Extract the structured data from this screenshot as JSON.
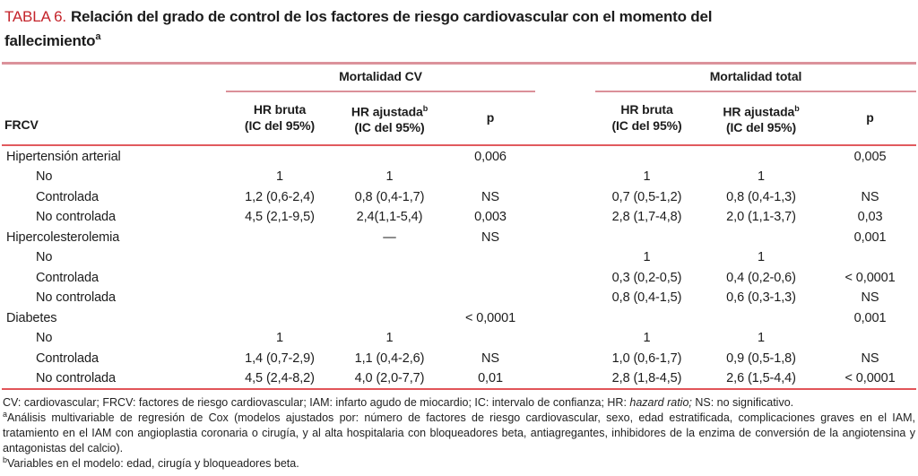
{
  "title": {
    "tag": "TABLA 6.",
    "text": "Relación del grado de control de los factores de riesgo cardiovascular con el momento del fallecimiento",
    "sup": "a"
  },
  "table": {
    "corner_label": "FRCV",
    "groups": [
      {
        "label": "Mortalidad CV"
      },
      {
        "label": "Mortalidad total"
      }
    ],
    "columns": {
      "hr_bruta_line1": "HR bruta",
      "hr_bruta_line2": "(IC del 95%)",
      "hr_ajustada_line1": "HR ajustada",
      "hr_ajustada_sup": "b",
      "hr_ajustada_line2": "(IC del 95%)",
      "p": "p"
    },
    "rows": [
      {
        "label": "Hipertensión arterial",
        "indent": false,
        "cells": [
          "",
          "",
          "0,006",
          "",
          "",
          "0,005"
        ]
      },
      {
        "label": "No",
        "indent": true,
        "cells": [
          "1",
          "1",
          "",
          "1",
          "1",
          ""
        ]
      },
      {
        "label": "Controlada",
        "indent": true,
        "cells": [
          "1,2 (0,6-2,4)",
          "0,8 (0,4-1,7)",
          "NS",
          "0,7 (0,5-1,2)",
          "0,8 (0,4-1,3)",
          "NS"
        ]
      },
      {
        "label": "No controlada",
        "indent": true,
        "cells": [
          "4,5 (2,1-9,5)",
          "2,4(1,1-5,4)",
          "0,003",
          "2,8 (1,7-4,8)",
          "2,0 (1,1-3,7)",
          "0,03"
        ]
      },
      {
        "label": "Hipercolesterolemia",
        "indent": false,
        "cells": [
          "",
          "—",
          "NS",
          "",
          "",
          "0,001"
        ]
      },
      {
        "label": "No",
        "indent": true,
        "cells": [
          "",
          "",
          "",
          "1",
          "1",
          ""
        ]
      },
      {
        "label": "Controlada",
        "indent": true,
        "cells": [
          "",
          "",
          "",
          "0,3 (0,2-0,5)",
          "0,4 (0,2-0,6)",
          "< 0,0001"
        ]
      },
      {
        "label": "No controlada",
        "indent": true,
        "cells": [
          "",
          "",
          "",
          "0,8 (0,4-1,5)",
          "0,6 (0,3-1,3)",
          "NS"
        ]
      },
      {
        "label": "Diabetes",
        "indent": false,
        "cells": [
          "",
          "",
          "< 0,0001",
          "",
          "",
          "0,001"
        ]
      },
      {
        "label": "No",
        "indent": true,
        "cells": [
          "1",
          "1",
          "",
          "1",
          "1",
          ""
        ]
      },
      {
        "label": "Controlada",
        "indent": true,
        "cells": [
          "1,4 (0,7-2,9)",
          "1,1 (0,4-2,6)",
          "NS",
          "1,0 (0,6-1,7)",
          "0,9 (0,5-1,8)",
          "NS"
        ]
      },
      {
        "label": "No controlada",
        "indent": true,
        "cells": [
          "4,5 (2,4-8,2)",
          "4,0 (2,0-7,7)",
          "0,01",
          "2,8 (1,8-4,5)",
          "2,6 (1,5-4,4)",
          "< 0,0001"
        ]
      }
    ]
  },
  "footnotes": {
    "abbr_pre": "CV: cardiovascular; FRCV: factores de riesgo cardiovascular; IAM: infarto agudo de miocardio; IC: intervalo de confianza; HR: ",
    "abbr_italic": "hazard ratio;",
    "abbr_post": " NS: no significativo.",
    "note_a_sup": "a",
    "note_a": "Análisis multivariable de regresión de Cox (modelos ajustados por: número de factores de riesgo cardiovascular, sexo, edad estratificada, complicaciones graves en el IAM, tratamiento en el IAM con angioplastia coronaria o cirugía, y al alta hospitalaria con bloqueadores beta, antiagregantes, inhibidores de la enzima de conversión de la angiotensina y antagonistas del calcio).",
    "note_b_sup": "b",
    "note_b": "Variables en el modelo: edad, cirugía y bloqueadores beta."
  },
  "colors": {
    "title_tag_red": "#c4242b",
    "rule_salmon_thick": "#db929b",
    "rule_salmon_group": "#db9099",
    "rule_red_thin": "#e15a5e",
    "text": "#1c1c1c"
  }
}
